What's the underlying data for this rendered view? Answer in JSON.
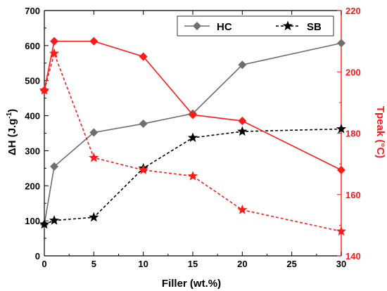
{
  "chart_data": {
    "type": "line",
    "x": [
      0,
      1,
      5,
      10,
      15,
      20,
      30
    ],
    "xlabel": "Filler (wt.%)",
    "xlim": [
      0,
      30
    ],
    "xticks": [
      "0",
      "5",
      "10",
      "15",
      "20",
      "25",
      "30"
    ],
    "ylabel_left": "ΔH (J.g",
    "ylabel_left_sup": "-1",
    "ylabel_left_close": ")",
    "ylim_left": [
      0,
      700
    ],
    "yticks_left": [
      "0",
      "100",
      "200",
      "300",
      "400",
      "500",
      "600",
      "700"
    ],
    "ylabel_right": "Tpeak (°C)",
    "ylim_right": [
      140,
      220
    ],
    "yticks_right": [
      "140",
      "160",
      "180",
      "200",
      "220"
    ],
    "grid": false,
    "legend_position": "top-right",
    "series": [
      {
        "name": "HC",
        "axis": "left",
        "marker": "diamond",
        "style": "solid",
        "color": "#6e6e6e",
        "values": [
          90,
          255,
          352,
          377,
          406,
          545,
          607
        ]
      },
      {
        "name": "SB",
        "axis": "left",
        "marker": "star",
        "style": "dashed",
        "color": "#000000",
        "values": [
          90,
          101,
          110,
          250,
          337,
          355,
          362
        ]
      },
      {
        "name": "",
        "axis": "right",
        "marker": "diamond",
        "style": "solid",
        "color": "#ff1a1a",
        "values": [
          194,
          210,
          210,
          205,
          186,
          184,
          168
        ]
      },
      {
        "name": "",
        "axis": "right",
        "marker": "star",
        "style": "dashed",
        "color": "#ff1a1a",
        "values": [
          194,
          206,
          172,
          168,
          166,
          155,
          148
        ]
      }
    ],
    "axis_colors": {
      "left": "#000000",
      "right": "#ff1a1a"
    }
  }
}
